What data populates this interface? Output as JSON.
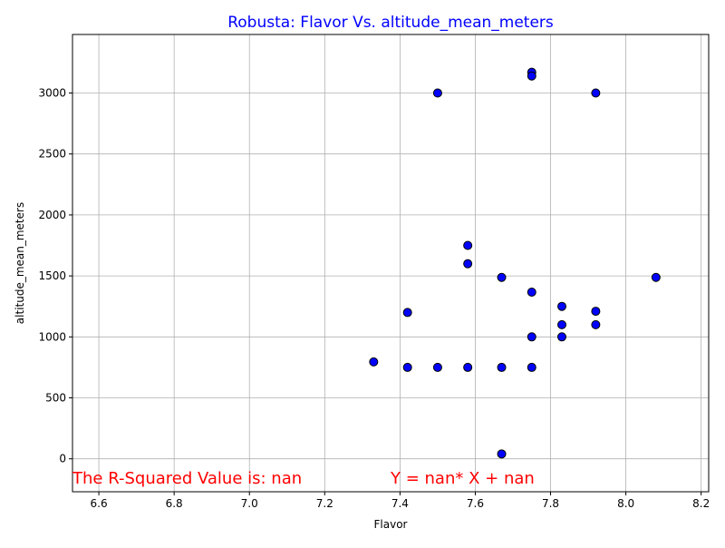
{
  "chart_data": {
    "type": "scatter",
    "title": "Robusta: Flavor Vs. altitude_mean_meters",
    "xlabel": "Flavor",
    "ylabel": "altitude_mean_meters",
    "xlim": [
      6.53,
      8.22
    ],
    "ylim": [
      -270,
      3480
    ],
    "xticks": [
      "6.6",
      "6.8",
      "7.0",
      "7.2",
      "7.4",
      "7.6",
      "7.8",
      "8.0",
      "8.2"
    ],
    "yticks": [
      "0",
      "500",
      "1000",
      "1500",
      "2000",
      "2500",
      "3000"
    ],
    "grid": true,
    "points": [
      {
        "x": 7.75,
        "y": 3170
      },
      {
        "x": 7.75,
        "y": 3140
      },
      {
        "x": 7.5,
        "y": 3000
      },
      {
        "x": 7.92,
        "y": 3000
      },
      {
        "x": 7.58,
        "y": 1750
      },
      {
        "x": 7.58,
        "y": 1600
      },
      {
        "x": 7.67,
        "y": 1488
      },
      {
        "x": 8.08,
        "y": 1488
      },
      {
        "x": 7.75,
        "y": 1367
      },
      {
        "x": 7.83,
        "y": 1250
      },
      {
        "x": 7.42,
        "y": 1200
      },
      {
        "x": 7.92,
        "y": 1210
      },
      {
        "x": 7.83,
        "y": 1100
      },
      {
        "x": 7.92,
        "y": 1100
      },
      {
        "x": 7.75,
        "y": 1000
      },
      {
        "x": 7.83,
        "y": 1000
      },
      {
        "x": 7.33,
        "y": 795
      },
      {
        "x": 7.42,
        "y": 750
      },
      {
        "x": 7.5,
        "y": 750
      },
      {
        "x": 7.58,
        "y": 750
      },
      {
        "x": 7.67,
        "y": 750
      },
      {
        "x": 7.75,
        "y": 750
      },
      {
        "x": 7.67,
        "y": 40
      }
    ],
    "annotations": {
      "r_squared": "The R-Squared Value is: nan",
      "equation": "Y = nan* X + nan"
    },
    "colors": {
      "marker_fill": "#0000ff",
      "marker_edge": "#000000",
      "title": "#0000ff",
      "annotation": "#ff0000",
      "grid": "#b0b0b0"
    }
  }
}
